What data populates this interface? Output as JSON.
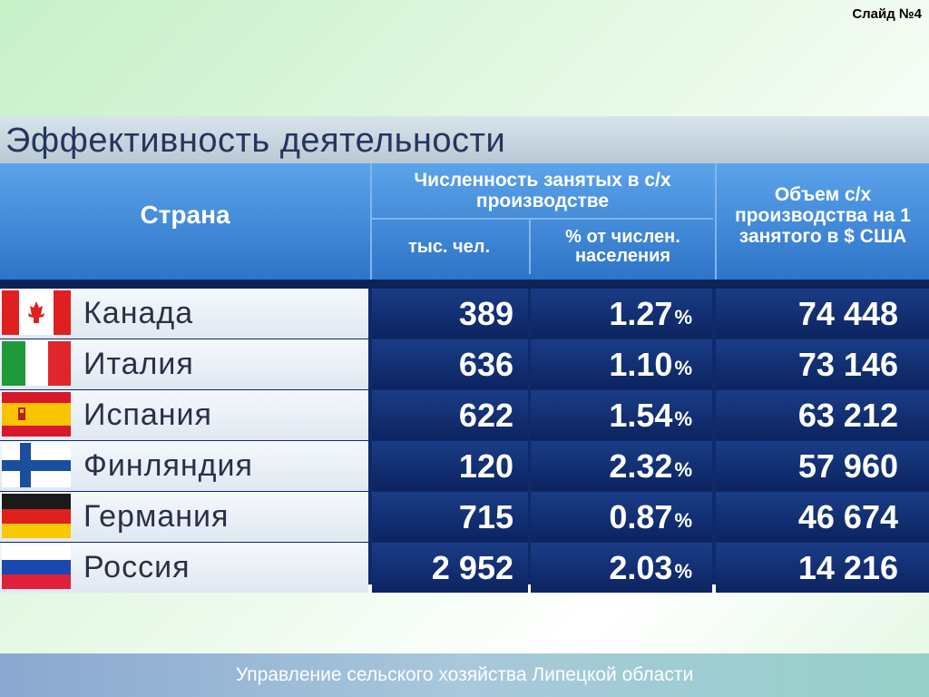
{
  "slide_label": "Слайд №4",
  "title": "Эффективность деятельности",
  "header": {
    "country": "Страна",
    "employed_group": "Численность занятых в с/х производстве",
    "thousand_people": "тыс. чел.",
    "pct_population": "% от числен. населения",
    "volume": "Объем с/х производства на 1 занятого в $ США"
  },
  "rows": [
    {
      "country": "Канада",
      "flag": "canada-flag-icon",
      "employed": "389",
      "pct": "1.27",
      "volume": "74 448"
    },
    {
      "country": "Италия",
      "flag": "italy-flag-icon",
      "employed": "636",
      "pct": "1.10",
      "volume": "73 146"
    },
    {
      "country": "Испания",
      "flag": "spain-flag-icon",
      "employed": "622",
      "pct": "1.54",
      "volume": "63 212"
    },
    {
      "country": "Финляндия",
      "flag": "finland-flag-icon",
      "employed": "120",
      "pct": "2.32",
      "volume": "57 960"
    },
    {
      "country": "Германия",
      "flag": "germany-flag-icon",
      "employed": "715",
      "pct": "0.87",
      "volume": "46 674"
    },
    {
      "country": "Россия",
      "flag": "russia-flag-icon",
      "employed": "2 952",
      "pct": "2.03",
      "volume": "14 216"
    }
  ],
  "pct_sign": "%",
  "footer": "Управление сельского хозяйства Липецкой области"
}
